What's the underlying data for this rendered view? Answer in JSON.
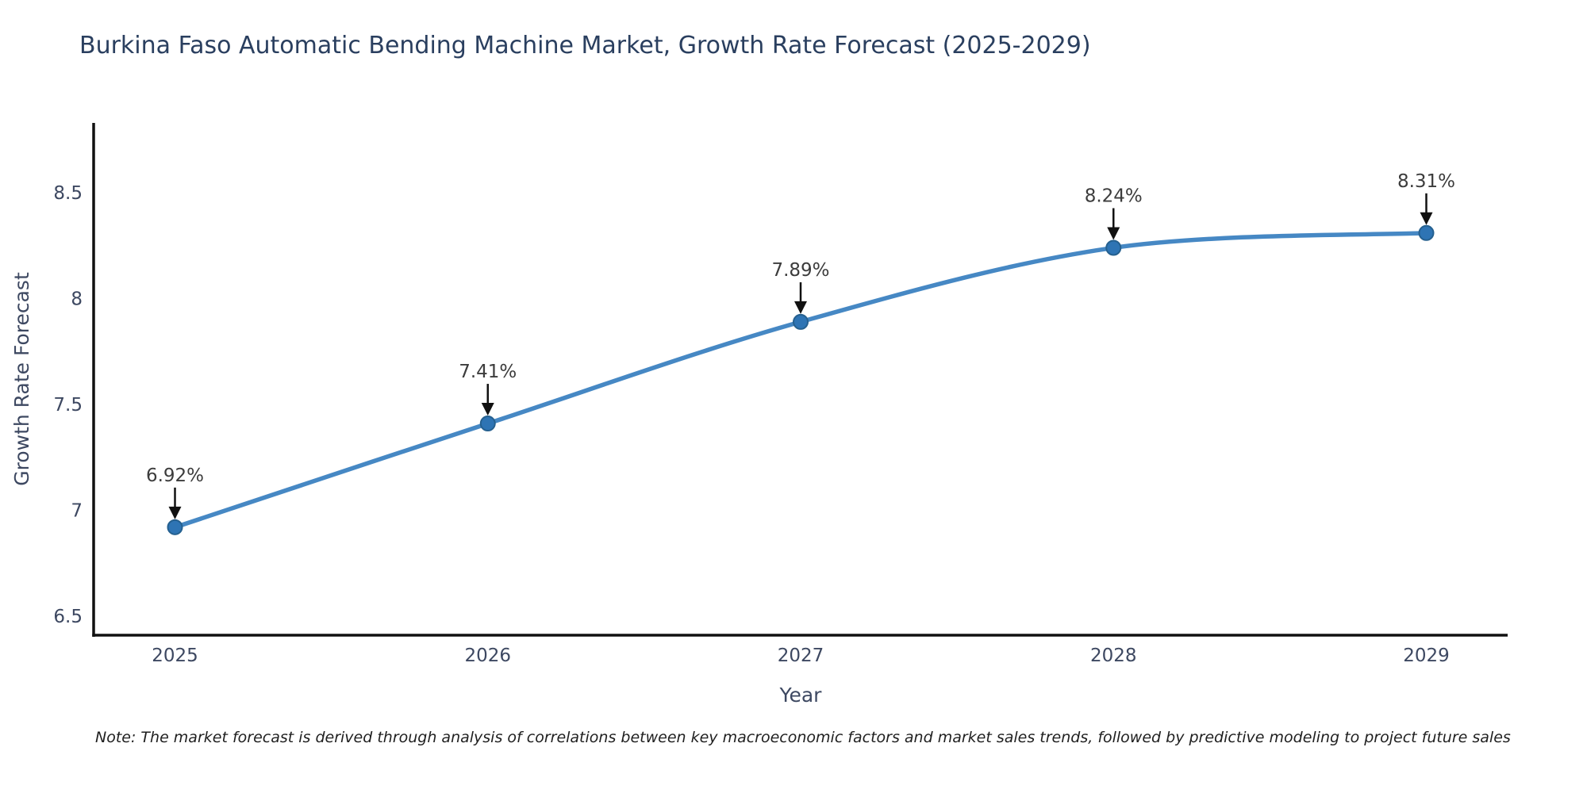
{
  "title": "Burkina Faso Automatic Bending Machine Market, Growth Rate Forecast (2025-2029)",
  "note": "Note: The market forecast is derived through analysis of correlations between key macroeconomic factors and market sales trends, followed by predictive modeling to project future sales",
  "chart_data": {
    "type": "line",
    "title": "Burkina Faso Automatic Bending Machine Market, Growth Rate Forecast (2025-2029)",
    "xlabel": "Year",
    "ylabel": "Growth Rate Forecast",
    "categories": [
      "2025",
      "2026",
      "2027",
      "2028",
      "2029"
    ],
    "x": [
      2025,
      2026,
      2027,
      2028,
      2029
    ],
    "series": [
      {
        "name": "Growth Rate Forecast (%)",
        "values": [
          6.92,
          7.41,
          7.89,
          8.24,
          8.31
        ],
        "point_labels": [
          "6.92%",
          "7.41%",
          "7.89%",
          "8.24%",
          "8.31%"
        ]
      }
    ],
    "yticks": [
      6.5,
      7,
      7.5,
      8,
      8.5
    ],
    "ytick_labels": [
      "6.5",
      "7",
      "7.5",
      "8",
      "8.5"
    ],
    "xlim": [
      2024.74,
      2029.26
    ],
    "ylim": [
      6.41,
      8.83
    ],
    "grid": false,
    "legend_position": "none",
    "line_style": "spline",
    "colors": {
      "line": "#4688c4",
      "marker_fill": "#2e74b4",
      "marker_edge": "#25608f",
      "annotation_arrow": "#111111",
      "point_label_text": "#3c3c3c",
      "axis_line": "#111111",
      "tick_text": "#3d4861",
      "axis_label_text": "#3d4861",
      "title_text": "#2a3f5f",
      "background": "#ffffff"
    }
  }
}
